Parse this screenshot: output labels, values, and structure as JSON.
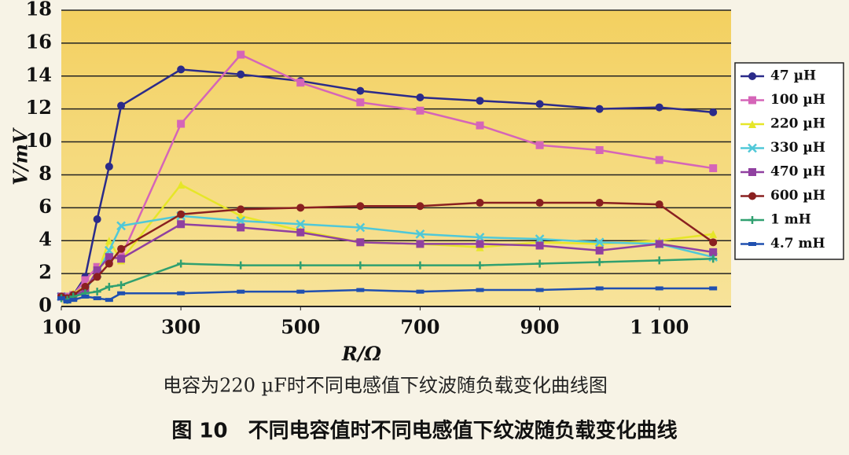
{
  "chart_data": {
    "type": "line",
    "x_label": "R/Ω",
    "y_label": "V/mV",
    "caption": "电容为220 µF时不同电感值下纹波随负载变化曲线图",
    "figure_title": "图 10　不同电容值时不同电感值下纹波随负载变化曲线",
    "x": [
      100,
      110,
      120,
      140,
      160,
      180,
      200,
      300,
      400,
      500,
      600,
      700,
      800,
      900,
      1000,
      1100,
      1190
    ],
    "xlim": [
      100,
      1220
    ],
    "xticks": [
      100,
      300,
      500,
      700,
      900,
      {
        "value": 1100,
        "label": "1 100"
      }
    ],
    "ylim": [
      0,
      18
    ],
    "yticks": [
      0,
      2,
      4,
      6,
      8,
      10,
      12,
      14,
      16,
      18
    ],
    "grid": true,
    "legend": "right",
    "series": [
      {
        "name": "47 µH",
        "color": "#2b2b8a",
        "marker": "circle",
        "values": [
          0.6,
          0.5,
          0.7,
          1.8,
          5.3,
          8.5,
          12.2,
          14.4,
          14.1,
          13.7,
          13.1,
          12.7,
          12.5,
          12.3,
          12.0,
          12.1,
          11.8
        ]
      },
      {
        "name": "100 µH",
        "color": "#d565b8",
        "marker": "square",
        "values": [
          0.6,
          0.6,
          0.7,
          1.6,
          2.4,
          2.9,
          3.0,
          11.1,
          15.3,
          13.6,
          12.4,
          11.9,
          11.0,
          9.8,
          9.5,
          8.9,
          8.4
        ]
      },
      {
        "name": "220 µH",
        "color": "#e6e628",
        "marker": "triangle",
        "values": [
          0.6,
          0.5,
          0.8,
          1.2,
          2.0,
          4.0,
          2.8,
          7.4,
          5.5,
          4.6,
          3.9,
          3.8,
          3.6,
          3.9,
          3.8,
          4.0,
          4.4
        ]
      },
      {
        "name": "330 µH",
        "color": "#50c8d8",
        "marker": "cross",
        "values": [
          0.6,
          0.5,
          0.6,
          1.0,
          2.0,
          3.4,
          4.9,
          5.5,
          5.2,
          5.0,
          4.8,
          4.4,
          4.2,
          4.1,
          3.9,
          3.8,
          3.0
        ]
      },
      {
        "name": "470 µH",
        "color": "#9040a0",
        "marker": "square",
        "values": [
          0.6,
          0.5,
          0.6,
          1.0,
          2.2,
          3.0,
          2.9,
          5.0,
          4.8,
          4.5,
          3.9,
          3.8,
          3.8,
          3.7,
          3.4,
          3.8,
          3.3
        ]
      },
      {
        "name": "600 µH",
        "color": "#8a2020",
        "marker": "circle",
        "values": [
          0.6,
          0.5,
          0.7,
          1.2,
          1.8,
          2.6,
          3.5,
          5.6,
          5.9,
          6.0,
          6.1,
          6.1,
          6.3,
          6.3,
          6.3,
          6.2,
          3.9
        ]
      },
      {
        "name": "1 mH",
        "color": "#30a070",
        "marker": "plus",
        "values": [
          0.5,
          0.4,
          0.6,
          0.8,
          0.9,
          1.2,
          1.3,
          2.6,
          2.5,
          2.5,
          2.5,
          2.5,
          2.5,
          2.6,
          2.7,
          2.8,
          2.9
        ]
      },
      {
        "name": "4.7 mH",
        "color": "#2050b0",
        "marker": "dash",
        "values": [
          0.5,
          0.3,
          0.4,
          0.6,
          0.5,
          0.4,
          0.8,
          0.8,
          0.9,
          0.9,
          1.0,
          0.9,
          1.0,
          1.0,
          1.1,
          1.1,
          1.1
        ]
      }
    ]
  }
}
